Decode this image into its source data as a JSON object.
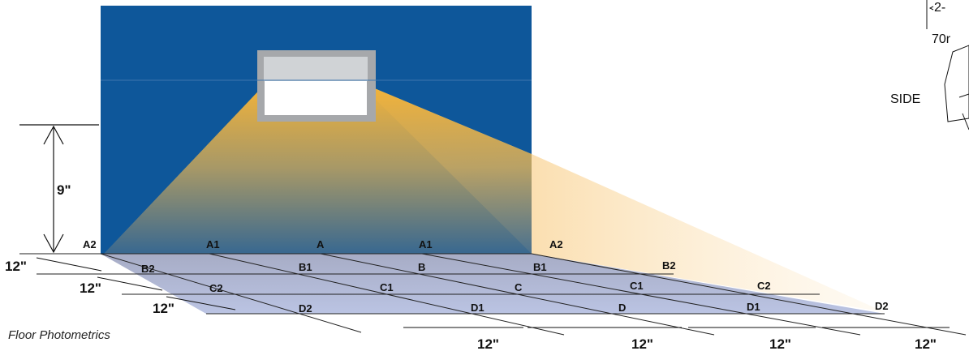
{
  "row_a": [
    "A2",
    "A1",
    "A",
    "A1",
    "A2"
  ],
  "row_b": [
    "B2",
    "B1",
    "B",
    "B1",
    "B2"
  ],
  "row_c": [
    "C2",
    "C1",
    "C",
    "C1",
    "C2"
  ],
  "row_d": [
    "D2",
    "D1",
    "D",
    "D1",
    "D2"
  ],
  "dimensions": {
    "height": "9\"",
    "row_spacing": [
      "12\"",
      "12\"",
      "12\""
    ],
    "column_spacing": [
      "12\"",
      "12\"",
      "12\"",
      "12\""
    ]
  },
  "caption": "Floor Photometrics",
  "inset": {
    "side_label": "SIDE",
    "dim_top": "2-",
    "dim_text": "70r"
  },
  "colors": {
    "wall": "#0e579a",
    "floor": "#a7b0cf",
    "light": "#f9b335"
  }
}
